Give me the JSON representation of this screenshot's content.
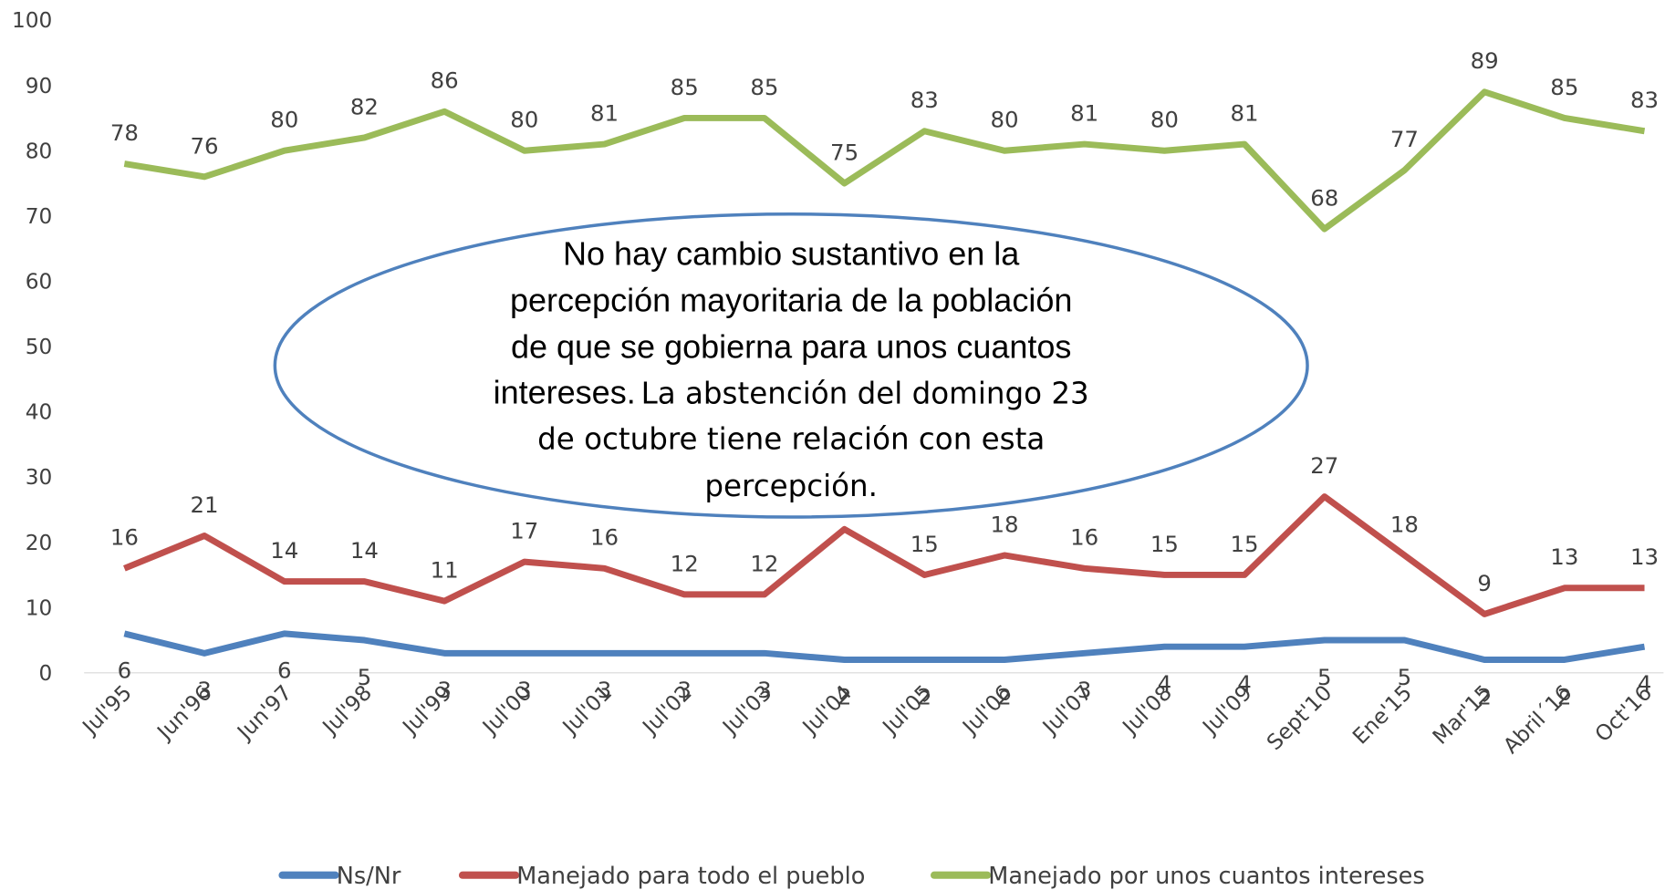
{
  "chart_data": {
    "type": "line",
    "categories": [
      "Jul'95",
      "Jun'96",
      "Jun'97",
      "Jul'98",
      "Jul'99",
      "Jul'00",
      "Jul'01",
      "Jul'02",
      "Jul'03",
      "Jul'04",
      "Jul'05",
      "Jul'06",
      "Jul'07",
      "Jul'08",
      "Jul'09",
      "Sept'10",
      "Ene'15",
      "Mar'15",
      "Abril´16",
      "Oct'16"
    ],
    "series": [
      {
        "name": "Ns/Nr",
        "color": "#4f81bd",
        "values": [
          6,
          3,
          6,
          5,
          3,
          3,
          3,
          3,
          3,
          2,
          2,
          2,
          3,
          4,
          4,
          5,
          5,
          2,
          2,
          4
        ]
      },
      {
        "name": "Manejado para todo el pueblo",
        "color": "#c0504d",
        "values": [
          16,
          21,
          14,
          14,
          11,
          17,
          16,
          12,
          12,
          22,
          15,
          18,
          16,
          15,
          15,
          27,
          18,
          9,
          13,
          13
        ],
        "value_labels": [
          "16",
          "21",
          "14",
          "14",
          "11",
          "17",
          "16",
          "12",
          "12",
          null,
          "15",
          "18",
          "16",
          "15",
          "15",
          "27",
          "18",
          "9",
          "13",
          "13"
        ]
      },
      {
        "name": "Manejado por unos cuantos intereses",
        "color": "#9bbb59",
        "values": [
          78,
          76,
          80,
          82,
          86,
          80,
          81,
          85,
          85,
          75,
          83,
          80,
          81,
          80,
          81,
          68,
          77,
          89,
          85,
          83
        ]
      }
    ],
    "ylim": [
      0,
      100
    ],
    "yticks": [
      0,
      10,
      20,
      30,
      40,
      50,
      60,
      70,
      80,
      90,
      100
    ],
    "annotation": [
      "No hay cambio sustantivo en la",
      "percepción mayoritaria de la población",
      "de que se gobierna para unos cuantos",
      "intereses.",
      "La abstención del domingo 23",
      "de octubre tiene relación con esta",
      "percepción."
    ]
  }
}
